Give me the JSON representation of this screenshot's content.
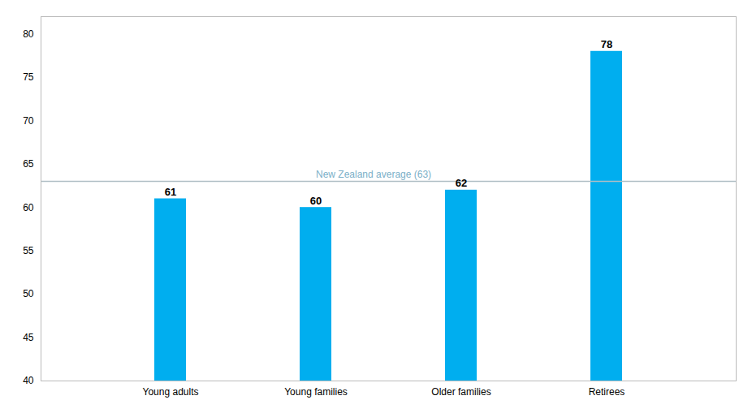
{
  "chart_data": {
    "type": "bar",
    "categories": [
      "Young adults",
      "Young families",
      "Older families",
      "Retirees"
    ],
    "values": [
      61,
      60,
      62,
      78
    ],
    "color": "#00AEEF",
    "ylim": [
      40,
      82
    ],
    "yticks": [
      40,
      45,
      50,
      55,
      60,
      65,
      70,
      75,
      80
    ],
    "grid": false,
    "data_labels": true,
    "average": {
      "value": 63,
      "label": "New Zealand average (63)",
      "color": "#B0BEC5",
      "label_color": "#7BAFC8"
    }
  }
}
